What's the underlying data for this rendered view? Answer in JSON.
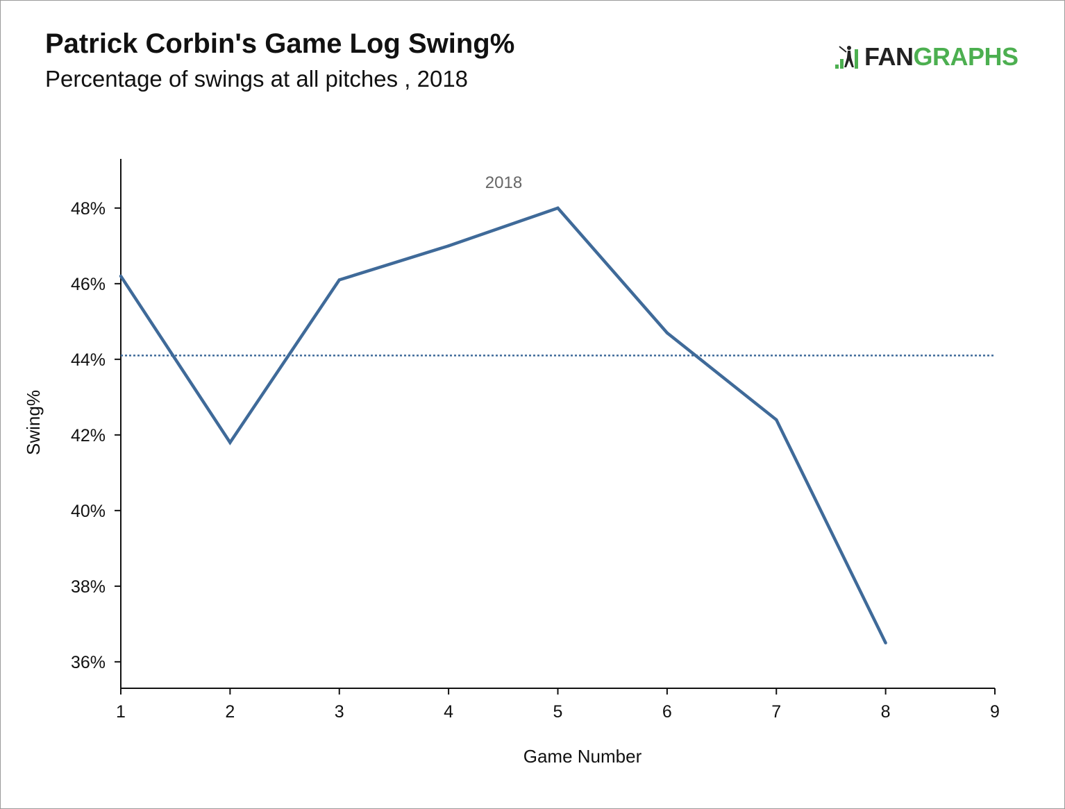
{
  "header": {
    "title": "Patrick Corbin's Game Log Swing%",
    "subtitle": "Percentage of swings at all pitches , 2018"
  },
  "logo": {
    "text_dark": "FAN",
    "text_green": "GRAPHS",
    "icon": "fangraphs-batter-icon",
    "colors": {
      "dark": "#222222",
      "green": "#4caf50"
    }
  },
  "chart_data": {
    "type": "line",
    "title": "Patrick Corbin's Game Log Swing%",
    "subtitle": "Percentage of swings at all pitches , 2018",
    "xlabel": "Game Number",
    "ylabel": "Swing%",
    "xlim": [
      1,
      9
    ],
    "ylim": [
      35.3,
      49.3
    ],
    "x_ticks": [
      1,
      2,
      3,
      4,
      5,
      6,
      7,
      8,
      9
    ],
    "x_tick_labels": [
      "1",
      "2",
      "3",
      "4",
      "5",
      "6",
      "7",
      "8",
      "9"
    ],
    "y_ticks": [
      36,
      38,
      40,
      42,
      44,
      46,
      48
    ],
    "y_tick_labels": [
      "36%",
      "38%",
      "40%",
      "42%",
      "44%",
      "46%",
      "48%"
    ],
    "grid": false,
    "series": [
      {
        "name": "2018",
        "color": "#3f6a99",
        "x": [
          1,
          2,
          3,
          4,
          5,
          6,
          7,
          8
        ],
        "values": [
          46.2,
          41.8,
          46.1,
          47.0,
          48.0,
          44.7,
          42.4,
          36.5
        ]
      }
    ],
    "reference_lines": [
      {
        "axis": "y",
        "value": 44.1,
        "style": "dotted",
        "color": "#3f6a99"
      }
    ]
  }
}
